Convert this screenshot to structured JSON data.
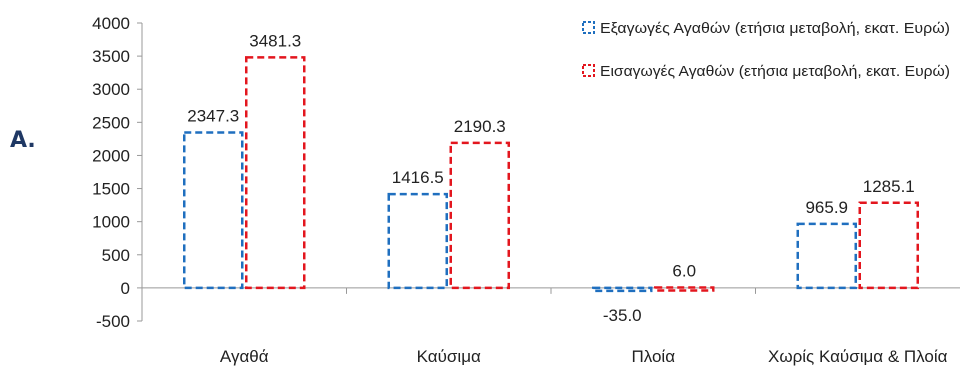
{
  "panel_label": "A.",
  "chart_data": {
    "type": "bar",
    "categories": [
      "Αγαθά",
      "Καύσιμα",
      "Πλοία",
      "Χωρίς Καύσιμα & Πλοία"
    ],
    "series": [
      {
        "name": "Εξαγωγές Αγαθών (ετήσια μεταβολή, εκατ. Ευρώ)",
        "values": [
          2347.3,
          1416.5,
          -35.0,
          965.9
        ],
        "labels": [
          "2347.3",
          "1416.5",
          "-35.0",
          "965.9"
        ],
        "color": "#1f6fbf"
      },
      {
        "name": "Εισαγωγές Αγαθών (ετήσια μεταβολή, εκατ. Ευρώ)",
        "values": [
          3481.3,
          2190.3,
          6.0,
          1285.1
        ],
        "labels": [
          "3481.3",
          "2190.3",
          "6.0",
          "1285.1"
        ],
        "color": "#e3161e"
      }
    ],
    "ylim": [
      -500,
      4000
    ],
    "yticks": [
      "4000",
      "3500",
      "3000",
      "2500",
      "2000",
      "1500",
      "1000",
      "500",
      "0",
      "-500"
    ],
    "legend_position": "top-right",
    "bar_style": "dashed outline",
    "grid": false
  }
}
